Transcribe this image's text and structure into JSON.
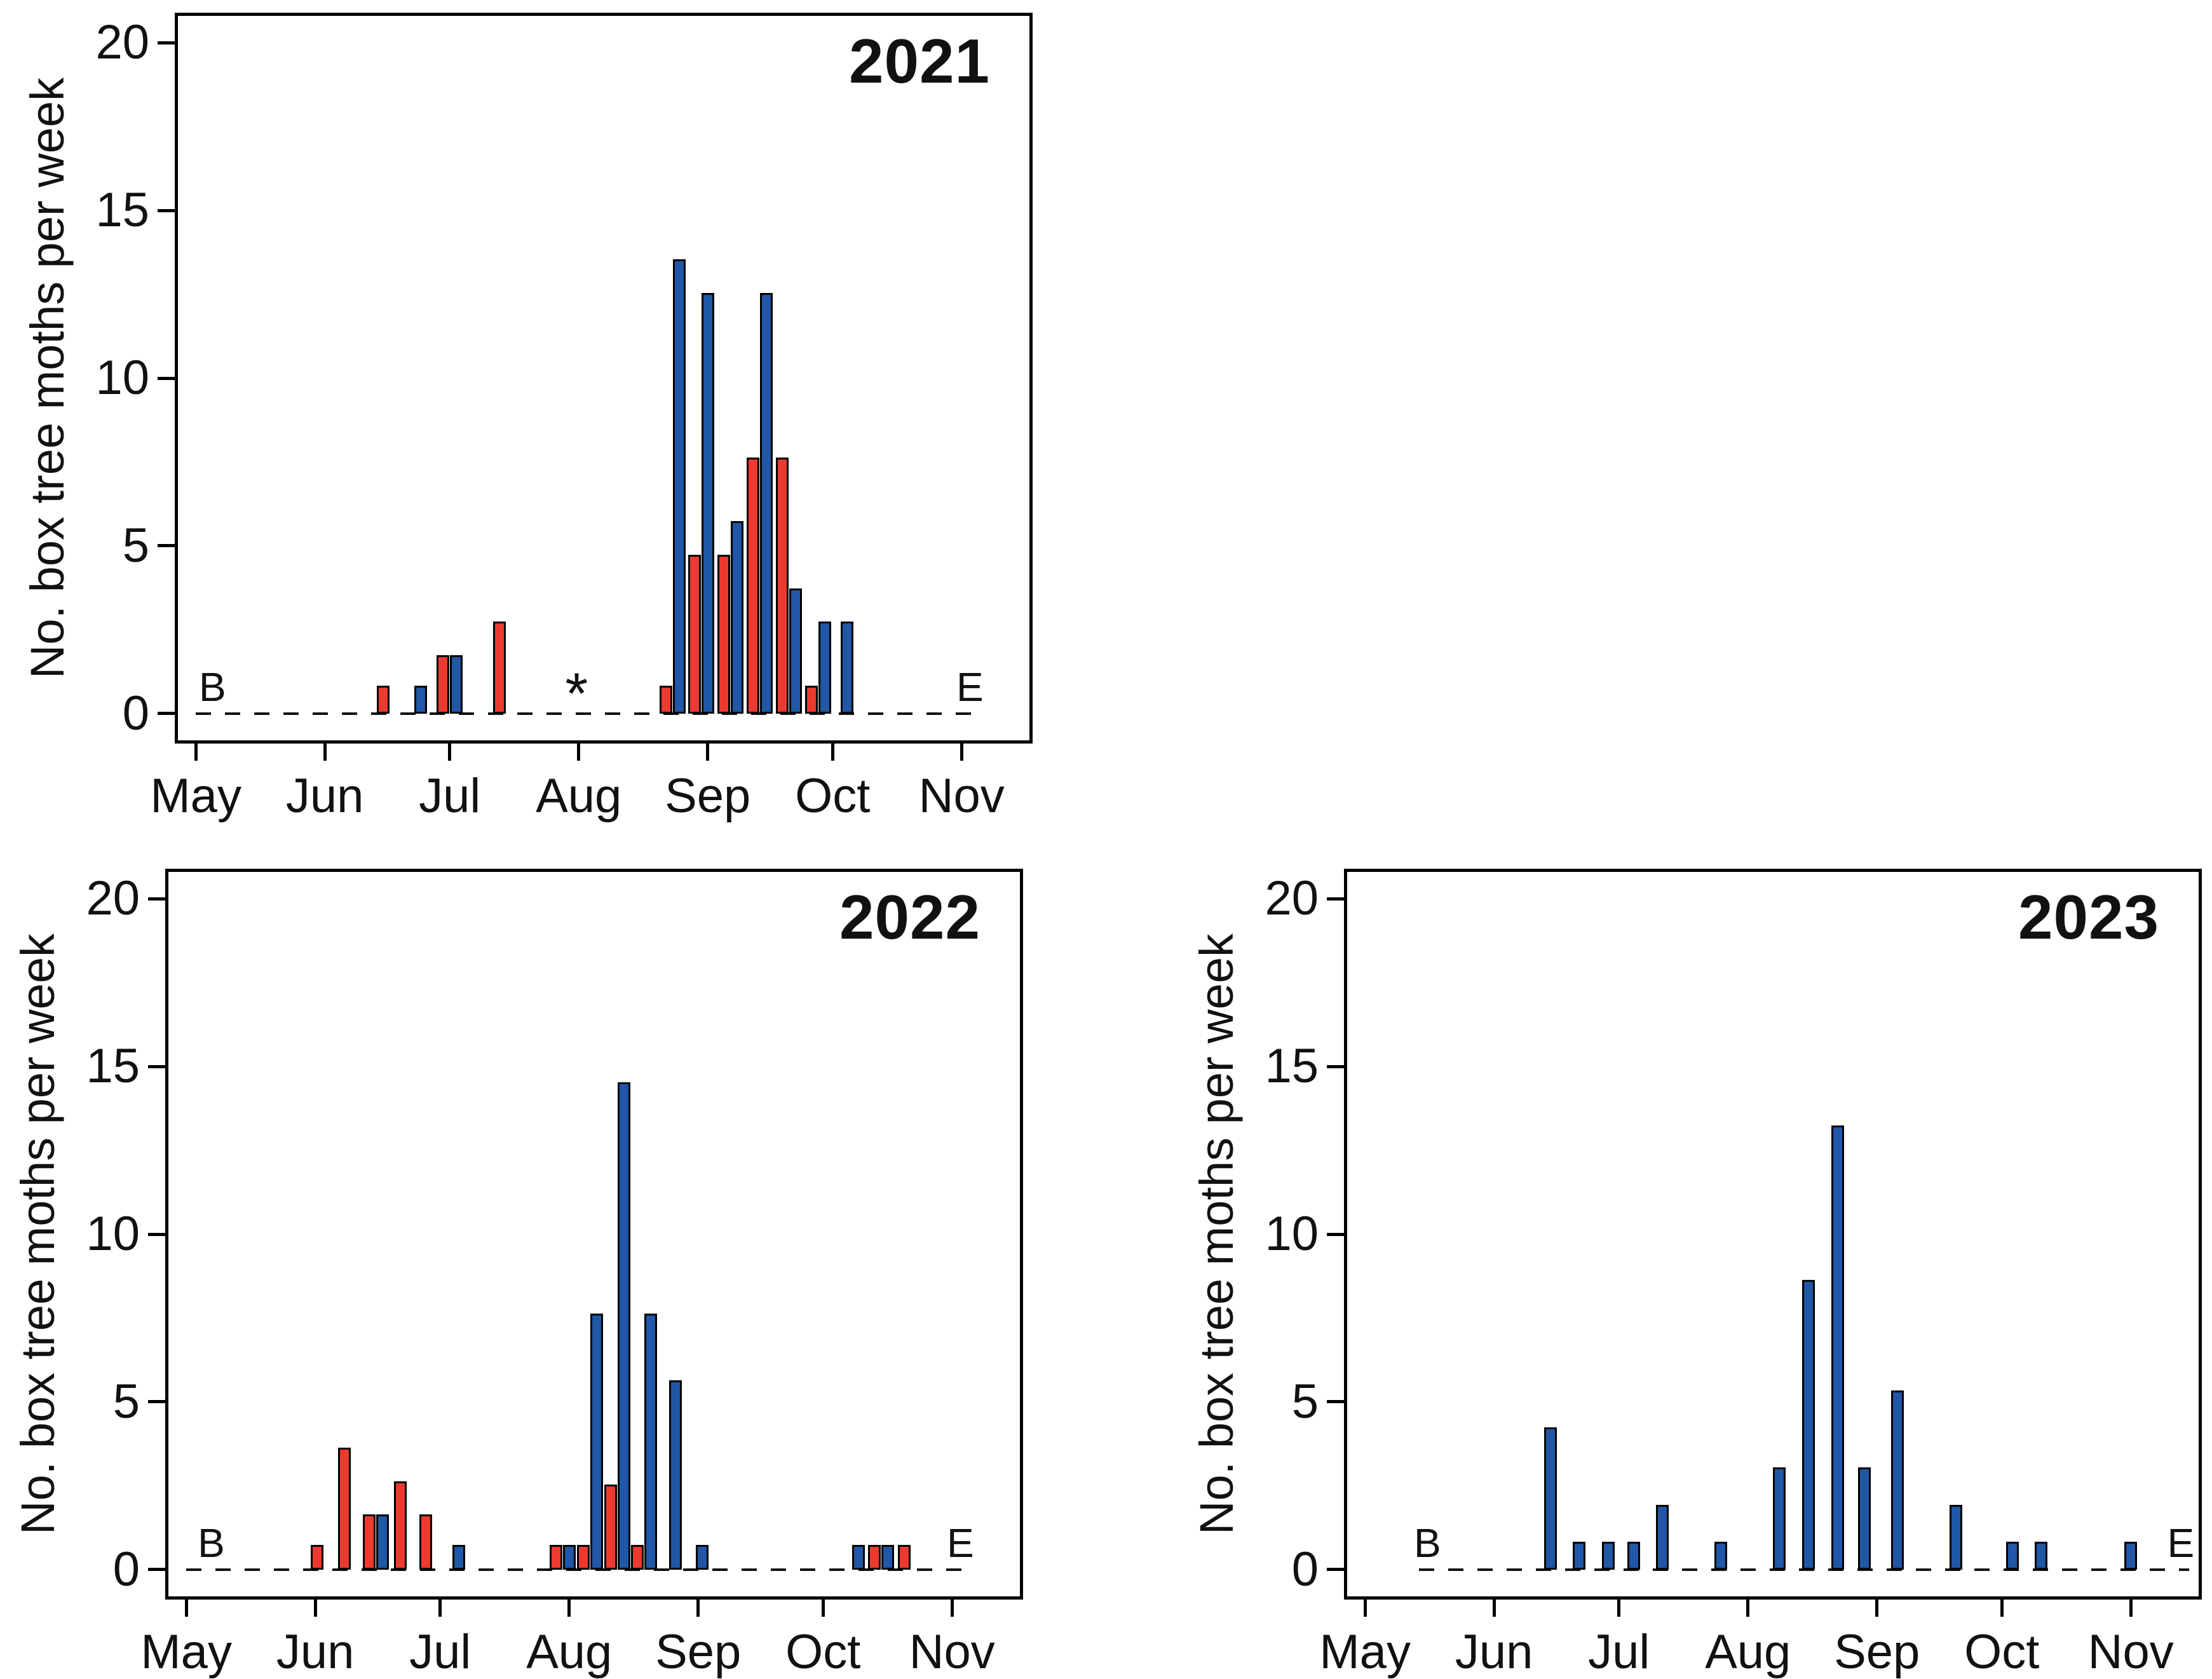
{
  "figure": {
    "ylabel": "No. box tree moths per week"
  },
  "colors": {
    "red_bar": "#ee3a2e",
    "blue_bar": "#2057a6",
    "outline": "#000000"
  },
  "chart_data": [
    {
      "type": "bar",
      "title": "2021",
      "ylabel": "No. box tree moths per week",
      "ylim": [
        -0.8,
        20.8
      ],
      "yticks": [
        0,
        5,
        10,
        15,
        20
      ],
      "x_axis_days_since_may1": [
        -4.3,
        200.3
      ],
      "month_ticks": [
        {
          "label": "May",
          "day": 0
        },
        {
          "label": "Jun",
          "day": 31
        },
        {
          "label": "Jul",
          "day": 61
        },
        {
          "label": "Aug",
          "day": 92
        },
        {
          "label": "Sep",
          "day": 123
        },
        {
          "label": "Oct",
          "day": 153
        },
        {
          "label": "Nov",
          "day": 184
        }
      ],
      "series": [
        {
          "name": "red",
          "color": "#ee3a2e",
          "points": [
            {
              "day": 45,
              "value": 0.8
            },
            {
              "day": 59.4,
              "value": 1.7
            },
            {
              "day": 73,
              "value": 2.7
            },
            {
              "day": 112.9,
              "value": 0.8
            },
            {
              "day": 119.9,
              "value": 4.7
            },
            {
              "day": 126.9,
              "value": 4.7
            },
            {
              "day": 133.9,
              "value": 7.6
            },
            {
              "day": 140.9,
              "value": 7.6
            },
            {
              "day": 147.9,
              "value": 0.8
            }
          ]
        },
        {
          "name": "blue",
          "color": "#2057a6",
          "points": [
            {
              "day": 54,
              "value": 0.8
            },
            {
              "day": 62.6,
              "value": 1.7
            },
            {
              "day": 116.1,
              "value": 13.5
            },
            {
              "day": 123.1,
              "value": 12.5
            },
            {
              "day": 130.1,
              "value": 5.7
            },
            {
              "day": 137.1,
              "value": 12.5
            },
            {
              "day": 144.1,
              "value": 3.7
            },
            {
              "day": 151.1,
              "value": 2.7
            },
            {
              "day": 156.5,
              "value": 2.7
            }
          ]
        }
      ],
      "annotations": {
        "begin": {
          "label": "B",
          "day": 4
        },
        "end": {
          "label": "E",
          "day": 186
        },
        "asterisk": {
          "label": "*",
          "day": 91.5
        },
        "dash_span_days": [
          0,
          188
        ]
      }
    },
    {
      "type": "bar",
      "title": "2022",
      "ylabel": "No. box tree moths per week",
      "ylim": [
        -0.8,
        20.8
      ],
      "yticks": [
        0,
        5,
        10,
        15,
        20
      ],
      "x_axis_days_since_may1": [
        -4.3,
        200.3
      ],
      "month_ticks": [
        {
          "label": "May",
          "day": 0
        },
        {
          "label": "Jun",
          "day": 31
        },
        {
          "label": "Jul",
          "day": 61
        },
        {
          "label": "Aug",
          "day": 92
        },
        {
          "label": "Sep",
          "day": 123
        },
        {
          "label": "Oct",
          "day": 153
        },
        {
          "label": "Nov",
          "day": 184
        }
      ],
      "series": [
        {
          "name": "red",
          "color": "#ee3a2e",
          "points": [
            {
              "day": 31.5,
              "value": 0.7
            },
            {
              "day": 38,
              "value": 3.6
            },
            {
              "day": 43.9,
              "value": 1.6
            },
            {
              "day": 51.5,
              "value": 2.6
            },
            {
              "day": 57.5,
              "value": 1.6
            },
            {
              "day": 88.9,
              "value": 0.7
            },
            {
              "day": 95.4,
              "value": 0.7
            },
            {
              "day": 101.9,
              "value": 2.5
            },
            {
              "day": 108.4,
              "value": 0.7
            },
            {
              "day": 165.4,
              "value": 0.7
            },
            {
              "day": 172.5,
              "value": 0.7
            }
          ]
        },
        {
          "name": "blue",
          "color": "#2057a6",
          "points": [
            {
              "day": 47.1,
              "value": 1.6
            },
            {
              "day": 65.5,
              "value": 0.7
            },
            {
              "day": 92.1,
              "value": 0.7
            },
            {
              "day": 98.6,
              "value": 7.6
            },
            {
              "day": 105.1,
              "value": 14.5
            },
            {
              "day": 111.6,
              "value": 7.6
            },
            {
              "day": 117.5,
              "value": 5.6
            },
            {
              "day": 124,
              "value": 0.7
            },
            {
              "day": 161.5,
              "value": 0.7
            },
            {
              "day": 168.6,
              "value": 0.7
            }
          ]
        }
      ],
      "annotations": {
        "begin": {
          "label": "B",
          "day": 6
        },
        "end": {
          "label": "E",
          "day": 186
        },
        "dash_span_days": [
          0,
          188
        ]
      }
    },
    {
      "type": "bar",
      "title": "2023",
      "ylabel": "No. box tree moths per week",
      "ylim": [
        -0.8,
        20.8
      ],
      "yticks": [
        0,
        5,
        10,
        15,
        20
      ],
      "x_axis_days_since_may1": [
        -4.3,
        200.3
      ],
      "month_ticks": [
        {
          "label": "May",
          "day": 0
        },
        {
          "label": "Jun",
          "day": 31
        },
        {
          "label": "Jul",
          "day": 61
        },
        {
          "label": "Aug",
          "day": 92
        },
        {
          "label": "Sep",
          "day": 123
        },
        {
          "label": "Oct",
          "day": 153
        },
        {
          "label": "Nov",
          "day": 184
        }
      ],
      "series": [
        {
          "name": "blue",
          "color": "#2057a6",
          "points": [
            {
              "day": 44.5,
              "value": 4.2
            },
            {
              "day": 51.5,
              "value": 0.8
            },
            {
              "day": 58.5,
              "value": 0.8
            },
            {
              "day": 64.5,
              "value": 0.8
            },
            {
              "day": 71.5,
              "value": 1.9
            },
            {
              "day": 85.5,
              "value": 0.8
            },
            {
              "day": 99.5,
              "value": 3.0
            },
            {
              "day": 106.5,
              "value": 8.6
            },
            {
              "day": 113.5,
              "value": 13.2
            },
            {
              "day": 120,
              "value": 3.0
            },
            {
              "day": 128,
              "value": 5.3
            },
            {
              "day": 142,
              "value": 1.9
            },
            {
              "day": 155.5,
              "value": 0.8
            },
            {
              "day": 162.5,
              "value": 0.8
            },
            {
              "day": 184,
              "value": 0.8
            }
          ]
        }
      ],
      "annotations": {
        "begin": {
          "label": "B",
          "day": 15
        },
        "end": {
          "label": "E",
          "day": 196
        },
        "dash_span_days": [
          13,
          198
        ]
      }
    }
  ]
}
